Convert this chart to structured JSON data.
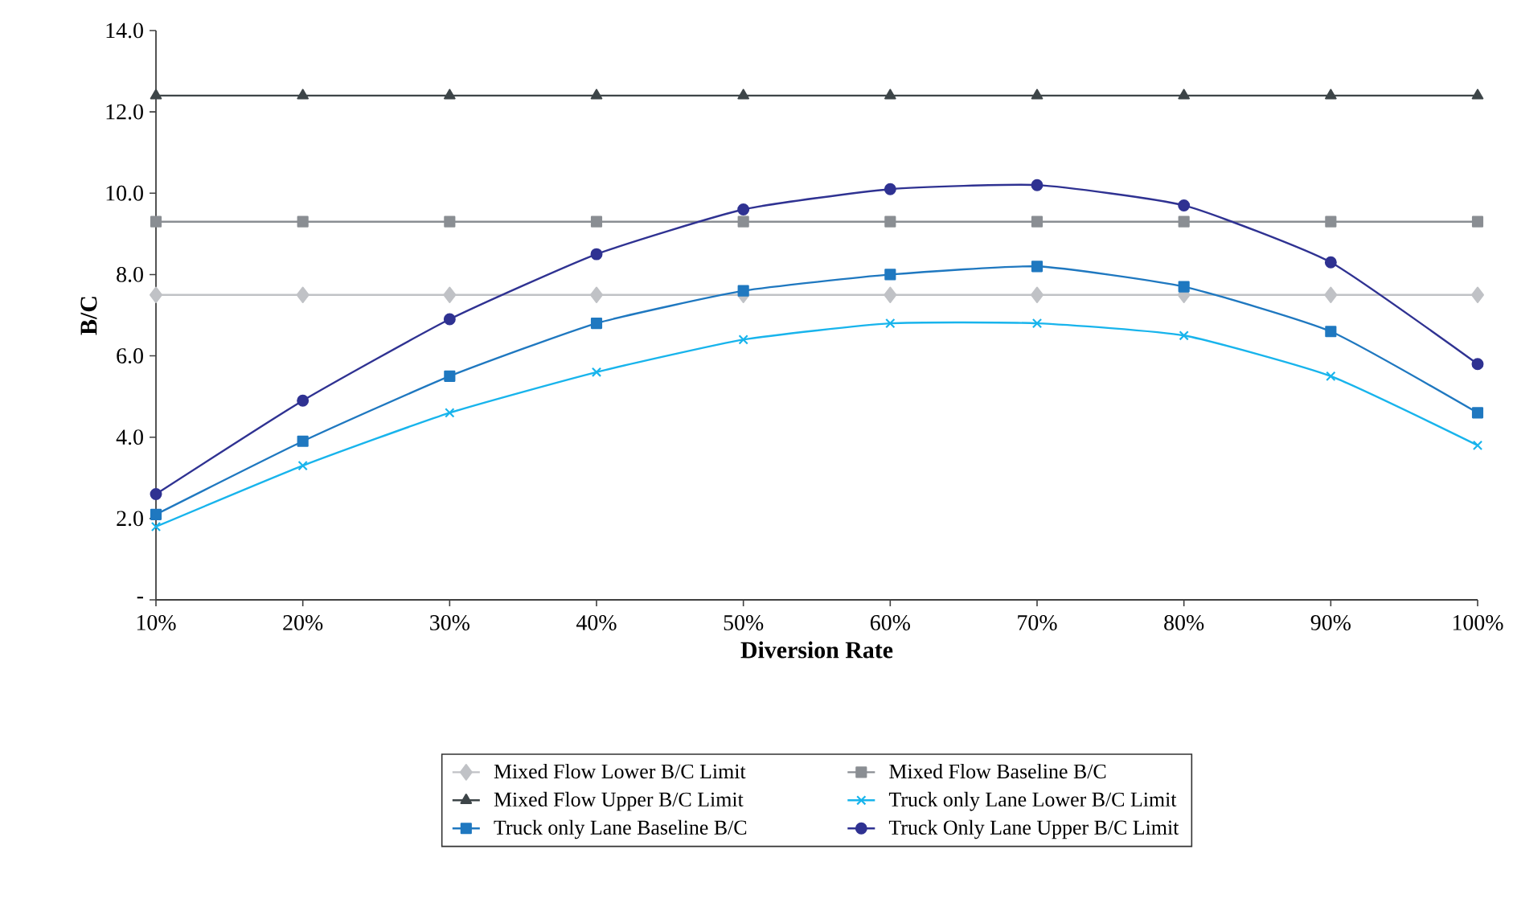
{
  "chart_data": {
    "type": "line",
    "xlabel": "Diversion Rate",
    "ylabel": "B/C",
    "categories": [
      "10%",
      "20%",
      "30%",
      "40%",
      "50%",
      "60%",
      "70%",
      "80%",
      "90%",
      "100%"
    ],
    "ylim": [
      0,
      14
    ],
    "yticks": [
      {
        "value": 0,
        "label": "-"
      },
      {
        "value": 2,
        "label": "2.0"
      },
      {
        "value": 4,
        "label": "4.0"
      },
      {
        "value": 6,
        "label": "6.0"
      },
      {
        "value": 8,
        "label": "8.0"
      },
      {
        "value": 10,
        "label": "10.0"
      },
      {
        "value": 12,
        "label": "12.0"
      },
      {
        "value": 14,
        "label": "14.0"
      }
    ],
    "grid": false,
    "legend": "bottom",
    "line_style": "solid",
    "series": [
      {
        "name": "Mixed Flow Lower B/C Limit",
        "color": "#c0c2c6",
        "marker": "diamond",
        "values": [
          7.5,
          7.5,
          7.5,
          7.5,
          7.5,
          7.5,
          7.5,
          7.5,
          7.5,
          7.5
        ]
      },
      {
        "name": "Mixed Flow Baseline B/C",
        "color": "#8a8e93",
        "marker": "square",
        "values": [
          9.3,
          9.3,
          9.3,
          9.3,
          9.3,
          9.3,
          9.3,
          9.3,
          9.3,
          9.3
        ]
      },
      {
        "name": "Mixed Flow Upper B/C Limit",
        "color": "#3d4548",
        "marker": "triangle",
        "values": [
          12.4,
          12.4,
          12.4,
          12.4,
          12.4,
          12.4,
          12.4,
          12.4,
          12.4,
          12.4
        ]
      },
      {
        "name": "Truck only Lane Lower B/C Limit",
        "color": "#18b4ec",
        "marker": "cross",
        "values": [
          1.8,
          3.3,
          4.6,
          5.6,
          6.4,
          6.8,
          6.8,
          6.5,
          5.5,
          3.8
        ]
      },
      {
        "name": "Truck only Lane Baseline B/C",
        "color": "#1f78c0",
        "marker": "square",
        "values": [
          2.1,
          3.9,
          5.5,
          6.8,
          7.6,
          8.0,
          8.2,
          7.7,
          6.6,
          4.6
        ]
      },
      {
        "name": "Truck Only Lane Upper B/C Limit",
        "color": "#2f3292",
        "marker": "circle",
        "values": [
          2.6,
          4.9,
          6.9,
          8.5,
          9.6,
          10.1,
          10.2,
          9.7,
          8.3,
          5.8
        ]
      }
    ]
  }
}
